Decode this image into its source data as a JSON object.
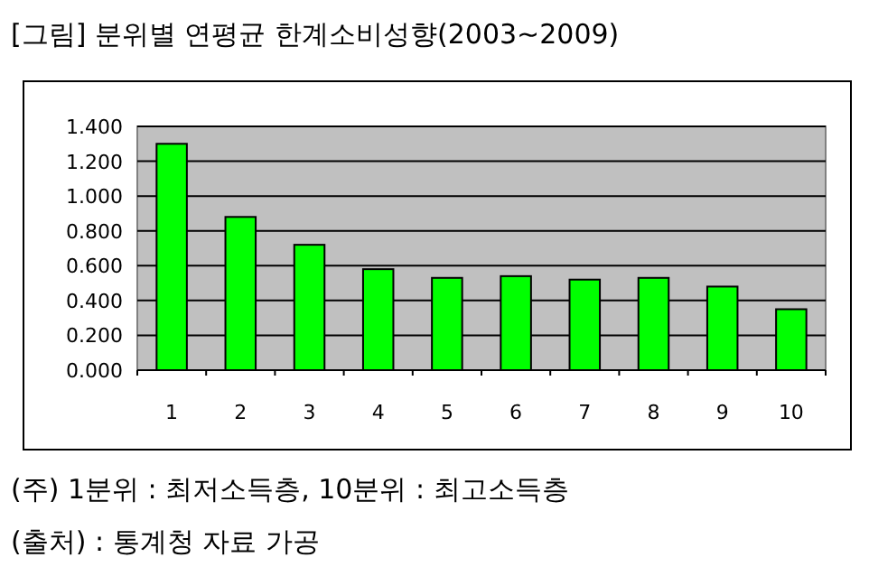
{
  "chart_data": {
    "type": "bar",
    "title": "[그림] 분위별 연평균 한계소비성향(2003~2009)",
    "categories": [
      "1",
      "2",
      "3",
      "4",
      "5",
      "6",
      "7",
      "8",
      "9",
      "10"
    ],
    "values": [
      1.3,
      0.88,
      0.72,
      0.58,
      0.53,
      0.54,
      0.52,
      0.53,
      0.48,
      0.35
    ],
    "color": "#00ff00",
    "ylim": [
      0,
      1.4
    ],
    "yticks": [
      {
        "value": 0,
        "label": "0.000"
      },
      {
        "value": 0.2,
        "label": "0.200"
      },
      {
        "value": 0.4,
        "label": "0.400"
      },
      {
        "value": 0.6,
        "label": "0.600"
      },
      {
        "value": 0.8,
        "label": "0.800"
      },
      {
        "value": 1.0,
        "label": "1.000"
      },
      {
        "value": 1.2,
        "label": "1.200"
      },
      {
        "value": 1.4,
        "label": "1.400"
      }
    ],
    "grid": "y",
    "annotations": [
      "(주) 1분위 : 최저소득층, 10분위 : 최고소득층",
      "(출처) : 통계청 자료 가공"
    ]
  }
}
